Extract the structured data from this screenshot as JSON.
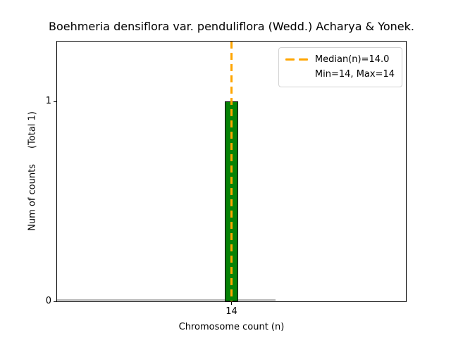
{
  "chart_data": {
    "type": "histogram",
    "title": "Boehmeria densiflora var. penduliflora (Wedd.) Acharya & Yonek.",
    "xlabel": "Chromosome count (n)",
    "ylabel": "Num of counts",
    "ylabel_annotation": "(Total 1)",
    "total_count": 1,
    "x": [
      14
    ],
    "counts": [
      1
    ],
    "bin_width": 1,
    "median": 14.0,
    "min": 14,
    "max": 14,
    "xlim": [
      1.3,
      26.7
    ],
    "ylim": [
      0,
      1.3
    ],
    "xticks": [
      "14"
    ],
    "yticks": [
      "0",
      "1"
    ],
    "ytick_values": [
      0,
      1
    ],
    "zero_line_extent": [
      1.3,
      17.2
    ],
    "grid": false,
    "legend_position": "upper right",
    "colors": {
      "bar_fill": "#068206",
      "bar_edge": "#000000",
      "median_line": "#FFA500",
      "zero_baseline": "#b5b5b5",
      "spine": "#000000"
    },
    "legend": {
      "median_label": "Median(n)=14.0",
      "minmax_label": "Min=14, Max=14"
    }
  }
}
